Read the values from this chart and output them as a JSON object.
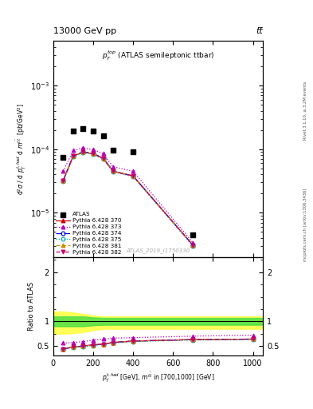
{
  "title_top": "13000 GeV pp",
  "title_right": "tt̅",
  "subplot_title": "$p_T^{top}$ (ATLAS semileptonic ttbar)",
  "watermark": "ATLAS_2019_I1750330",
  "right_label_top": "Rivet 3.1.10, ≥ 3.2M events",
  "right_label_bottom": "mcplots.cern.ch [arXiv:1306.3436]",
  "ylabel_main": "d$^2\\sigma$ / d $p_T^{t,had}$ d $m^{t\\bar{t}}$  [pb/GeV$^2$]",
  "ylabel_ratio": "Ratio to ATLAS",
  "xlabel": "$p_T^{t,had}$ [GeV], $m^{t\\bar{t}}$ in [700,1000] [GeV]",
  "atlas_x": [
    50,
    100,
    150,
    200,
    250,
    300,
    400,
    700
  ],
  "atlas_y": [
    7.5e-05,
    0.00019,
    0.00021,
    0.00019,
    0.00016,
    9.5e-05,
    9e-05,
    4.5e-06
  ],
  "mc_x": [
    50,
    100,
    150,
    200,
    250,
    300,
    400,
    700
  ],
  "py370_y": [
    3.2e-05,
    7.8e-05,
    9e-05,
    8.5e-05,
    7.2e-05,
    4.5e-05,
    3.8e-05,
    3.1e-06
  ],
  "py373_y": [
    4.5e-05,
    9.5e-05,
    0.000105,
    9.8e-05,
    8.5e-05,
    5.3e-05,
    4.5e-05,
    3.4e-06
  ],
  "py374_y": [
    3.2e-05,
    7.8e-05,
    9e-05,
    8.5e-05,
    7.2e-05,
    4.5e-05,
    3.8e-05,
    3.1e-06
  ],
  "py375_y": [
    3.15e-05,
    7.6e-05,
    8.8e-05,
    8.3e-05,
    7e-05,
    4.4e-05,
    3.7e-05,
    3e-06
  ],
  "py381_y": [
    3.2e-05,
    7.8e-05,
    9e-05,
    8.5e-05,
    7.2e-05,
    4.5e-05,
    3.8e-05,
    3.1e-06
  ],
  "py382_y": [
    3.2e-05,
    7.8e-05,
    9e-05,
    8.5e-05,
    7.2e-05,
    4.5e-05,
    3.8e-05,
    3.1e-06
  ],
  "ratio_x": [
    50,
    100,
    150,
    200,
    250,
    300,
    400,
    700,
    1000
  ],
  "ratio_370": [
    0.44,
    0.48,
    0.5,
    0.52,
    0.54,
    0.57,
    0.6,
    0.63,
    0.64
  ],
  "ratio_373": [
    0.56,
    0.57,
    0.59,
    0.62,
    0.64,
    0.66,
    0.67,
    0.7,
    0.72
  ],
  "ratio_374": [
    0.44,
    0.48,
    0.5,
    0.52,
    0.54,
    0.57,
    0.6,
    0.63,
    0.64
  ],
  "ratio_375": [
    0.43,
    0.47,
    0.49,
    0.51,
    0.53,
    0.56,
    0.59,
    0.62,
    0.63
  ],
  "ratio_381": [
    0.44,
    0.48,
    0.5,
    0.52,
    0.54,
    0.57,
    0.6,
    0.63,
    0.64
  ],
  "ratio_382": [
    0.44,
    0.48,
    0.5,
    0.52,
    0.54,
    0.57,
    0.6,
    0.63,
    0.64
  ],
  "green_band_x": [
    0,
    50,
    100,
    150,
    200,
    250,
    300,
    400,
    700,
    1000,
    1050
  ],
  "green_band_hi": [
    1.1,
    1.1,
    1.1,
    1.1,
    1.08,
    1.07,
    1.07,
    1.07,
    1.07,
    1.07,
    1.07
  ],
  "green_band_lo": [
    0.9,
    0.9,
    0.9,
    0.9,
    0.92,
    0.93,
    0.93,
    0.93,
    0.93,
    0.93,
    0.93
  ],
  "yellow_band_x": [
    0,
    50,
    100,
    150,
    200,
    250,
    300,
    400,
    700,
    1000,
    1050
  ],
  "yellow_band_hi": [
    1.2,
    1.2,
    1.18,
    1.15,
    1.12,
    1.1,
    1.1,
    1.1,
    1.1,
    1.1,
    1.1
  ],
  "yellow_band_lo": [
    0.75,
    0.75,
    0.76,
    0.78,
    0.82,
    0.85,
    0.85,
    0.85,
    0.85,
    0.85,
    0.85
  ],
  "ylim_main": [
    2e-06,
    0.005
  ],
  "ylim_ratio": [
    0.3,
    2.3
  ],
  "xlim": [
    0,
    1050
  ],
  "colors": {
    "370": "#cc0000",
    "373": "#bb00bb",
    "374": "#0000cc",
    "375": "#00aaaa",
    "381": "#cc8800",
    "382": "#cc0066"
  }
}
